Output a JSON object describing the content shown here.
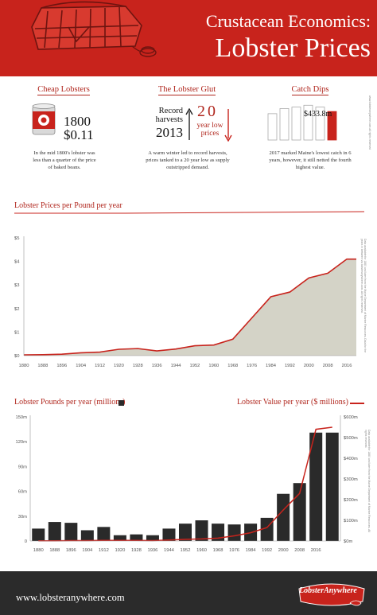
{
  "header": {
    "subtitle": "Crustacean Economics:",
    "title": "Lobster Prices",
    "bg_color": "#c8231c",
    "icons": [
      "lobster-trap-icon",
      "rope-icon"
    ]
  },
  "side_note_top": "www.lobsteranywhere.com all rights reserved",
  "facts": {
    "cheap": {
      "title": "Cheap Lobsters",
      "year": "1800",
      "price": "$0.11",
      "caption": "In the mid 1800's lobster was less than a quarter of the price of baked beans.",
      "icon": "bean-can-icon"
    },
    "glut": {
      "title": "The Lobster Glut",
      "record_line1": "Record",
      "record_line2": "harvests",
      "year": "2013",
      "big_num": "20",
      "low_line1": "year low",
      "low_line2": "prices",
      "caption": "A warm winter led to record harvests, prices tanked to a 20 year low as supply outstripped demand.",
      "icons": [
        "up-arrow-icon",
        "down-arrow-icon"
      ]
    },
    "catch": {
      "title": "Catch Dips",
      "value_label": "$433.8m",
      "caption": "2017 marked Maine's lowest catch in 6 years, however, it still netted the fourth highest value.",
      "bar_values": [
        0.72,
        0.86,
        0.9,
        0.95,
        0.9,
        0.78
      ],
      "accent": "#c8231c"
    }
  },
  "chart1": {
    "title": "Lobster Prices per Pound per year",
    "side_note": "Data available for 1880 and later from the Maine Department of Marine Resources. Data for the years in between via lobsteranywhere.com. All rights reserved.",
    "fill_color": "#d4d3c7",
    "line_color": "#c8231c"
  },
  "chart2": {
    "title_left": "Lobster Pounds per year (millions)",
    "title_right": "Lobster Value per year ($ millions)",
    "side_note": "Data available for 1880 and later from the Maine Department of Marine Resources. All rights reserved.",
    "bar_color": "#2a2a2a",
    "line_color": "#c8231c"
  },
  "chart_data": [
    {
      "type": "area",
      "title": "Lobster Prices per Pound per year",
      "x": [
        1880,
        1888,
        1896,
        1904,
        1912,
        1920,
        1928,
        1936,
        1944,
        1952,
        1960,
        1968,
        1976,
        1984,
        1992,
        2000,
        2008,
        2016,
        2020
      ],
      "y": [
        0.03,
        0.04,
        0.06,
        0.12,
        0.15,
        0.27,
        0.3,
        0.2,
        0.28,
        0.42,
        0.45,
        0.7,
        1.6,
        2.5,
        2.7,
        3.3,
        3.5,
        4.1,
        4.1
      ],
      "x_ticks": [
        "1880",
        "1888",
        "1896",
        "1904",
        "1912",
        "1920",
        "1928",
        "1936",
        "1944",
        "1952",
        "1960",
        "1968",
        "1976",
        "1984",
        "1992",
        "2000",
        "2008",
        "2016"
      ],
      "y_ticks": [
        "$0",
        "$1",
        "$2",
        "$3",
        "$4",
        "$5"
      ],
      "ylim": [
        0,
        5
      ],
      "grid": false
    },
    {
      "type": "bar",
      "title": "Lobster Pounds per year (millions)",
      "categories": [
        "1880",
        "1888",
        "1896",
        "1904",
        "1912",
        "1920",
        "1928",
        "1936",
        "1944",
        "1952",
        "1960",
        "1968",
        "1976",
        "1984",
        "1992",
        "2000",
        "2008",
        "2016",
        "2020"
      ],
      "series": [
        {
          "name": "Lobster Pounds per year (millions)",
          "axis": "left",
          "values": [
            15,
            23,
            22,
            13,
            17,
            7,
            8,
            7,
            15,
            21,
            25,
            21,
            20,
            21,
            28,
            57,
            70,
            131,
            131
          ]
        },
        {
          "name": "Lobster Value per year ($ millions)",
          "axis": "right",
          "type": "line",
          "values": [
            1,
            1,
            2,
            2,
            3,
            3,
            3,
            2,
            5,
            8,
            10,
            14,
            25,
            40,
            65,
            150,
            230,
            540,
            550
          ]
        }
      ],
      "x_ticks": [
        "1880",
        "1888",
        "1896",
        "1904",
        "1912",
        "1920",
        "1928",
        "1936",
        "1944",
        "1952",
        "1960",
        "1968",
        "1976",
        "1984",
        "1992",
        "2000",
        "2008",
        "2016"
      ],
      "y_ticks_left": [
        "0",
        "30m",
        "60m",
        "90m",
        "120m",
        "150m"
      ],
      "y_ticks_right": [
        "$0m",
        "$100m",
        "$200m",
        "$300m",
        "$400m",
        "$500m",
        "$600m"
      ],
      "ylim_left": [
        0,
        150
      ],
      "ylim_right": [
        0,
        600
      ],
      "legend": "top"
    }
  ],
  "footer": {
    "url": "www.lobsteranywhere.com",
    "logo": "LobsterAnywhere"
  }
}
